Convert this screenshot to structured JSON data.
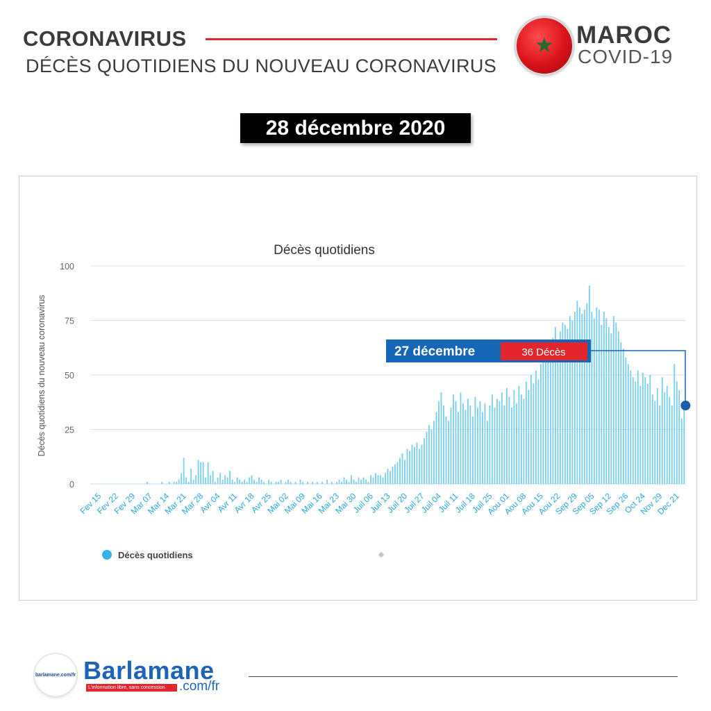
{
  "header": {
    "title": "CORONAVIRUS",
    "subtitle": "DÉCÈS QUOTIDIENS DU NOUVEAU CORONAVIRUS",
    "country": "MAROC",
    "covid": "COVID-19",
    "flag_star": "★",
    "date": "28 décembre 2020"
  },
  "colors": {
    "accent_red": "#e3262e",
    "bar_blue": "#7fd0ec",
    "callout_blue": "#1666b8",
    "marker_blue": "#1a5fa8"
  },
  "chart_data": {
    "type": "bar",
    "title": "Décès quotidiens",
    "xlabel": "",
    "ylabel": "Décès quotidiens du nouveau coronavirus",
    "ylim": [
      0,
      100
    ],
    "yticks": [
      0,
      25,
      50,
      75,
      100
    ],
    "grid": true,
    "legend_position": "bottom-left",
    "series": [
      {
        "name": "Décès quotidiens"
      }
    ],
    "x_tick_labels": [
      "Fev 15",
      "Fev 22",
      "Fev 29",
      "Mar 07",
      "Mar 14",
      "Mar 21",
      "Mar 28",
      "Avr 04",
      "Avr 11",
      "Avr 18",
      "Avr 25",
      "Mai 02",
      "Mai 09",
      "Mai 16",
      "Mai 23",
      "Mai 30",
      "Juil 06",
      "Juil 13",
      "Juil 20",
      "Juil 27",
      "Juil 04",
      "Juil 11",
      "Juil 18",
      "Juil 25",
      "Aou 01",
      "Aou 08",
      "Aou 15",
      "Aou 22",
      "Sep 29",
      "Sep 05",
      "Sep 12",
      "Sep 26",
      "Oct 24",
      "Nov 29",
      "Dec 21"
    ],
    "weekly_pattern": [
      [
        0,
        0,
        0,
        0,
        0,
        0,
        0
      ],
      [
        0,
        0,
        0,
        0,
        0,
        0,
        0
      ],
      [
        0,
        0,
        0,
        0,
        0,
        0,
        0
      ],
      [
        0,
        0,
        1,
        0,
        0,
        0,
        0
      ],
      [
        0,
        1,
        0,
        0,
        1,
        0,
        1
      ],
      [
        1,
        2,
        5,
        12,
        3,
        1,
        7
      ],
      [
        2,
        4,
        11,
        10,
        10,
        3,
        10
      ],
      [
        4,
        6,
        1,
        3,
        5,
        2,
        4
      ],
      [
        3,
        6,
        2,
        1,
        3,
        2,
        1
      ],
      [
        2,
        1,
        3,
        4,
        2,
        1,
        3
      ],
      [
        2,
        1,
        0,
        2,
        1,
        0,
        1
      ],
      [
        1,
        2,
        0,
        1,
        2,
        1,
        0
      ],
      [
        1,
        0,
        2,
        1,
        0,
        1,
        0
      ],
      [
        1,
        0,
        1,
        0,
        1,
        0,
        2
      ],
      [
        0,
        1,
        0,
        1,
        2,
        1,
        3
      ],
      [
        2,
        1,
        4,
        2,
        1,
        3,
        2
      ],
      [
        3,
        2,
        1,
        4,
        3,
        5,
        4
      ],
      [
        4,
        3,
        5,
        7,
        6,
        8,
        9
      ],
      [
        10,
        12,
        14,
        11,
        16,
        15,
        18
      ],
      [
        17,
        19,
        16,
        18,
        21,
        24,
        27
      ],
      [
        25,
        29,
        33,
        38,
        42,
        36,
        31
      ],
      [
        29,
        35,
        41,
        38,
        33,
        42,
        37
      ],
      [
        34,
        39,
        36,
        31,
        40,
        35,
        38
      ],
      [
        33,
        37,
        29,
        36,
        41,
        35,
        39
      ],
      [
        38,
        42,
        36,
        44,
        40,
        35,
        43
      ],
      [
        37,
        45,
        41,
        39,
        47,
        43,
        50
      ],
      [
        46,
        52,
        48,
        55,
        58,
        61,
        65
      ],
      [
        62,
        67,
        72,
        66,
        70,
        74,
        73
      ],
      [
        71,
        77,
        75,
        79,
        84,
        81,
        78
      ],
      [
        80,
        83,
        91,
        79,
        76,
        81,
        80
      ],
      [
        73,
        79,
        76,
        72,
        69,
        77,
        74
      ],
      [
        70,
        65,
        62,
        58,
        55,
        52,
        49
      ],
      [
        47,
        52,
        45,
        51,
        49,
        46,
        50
      ],
      [
        41,
        38,
        44,
        36,
        49,
        42,
        45
      ],
      [
        40,
        36,
        55,
        47,
        43,
        30,
        36
      ]
    ],
    "callout": {
      "date": "27 décembre",
      "value": 36,
      "label": "36 Décès"
    }
  },
  "footer": {
    "brand": "Barlamane",
    "domain": ".com/fr",
    "tagline": "L'information libre, sans concession",
    "logo_text": "barlamane.com/fr"
  }
}
